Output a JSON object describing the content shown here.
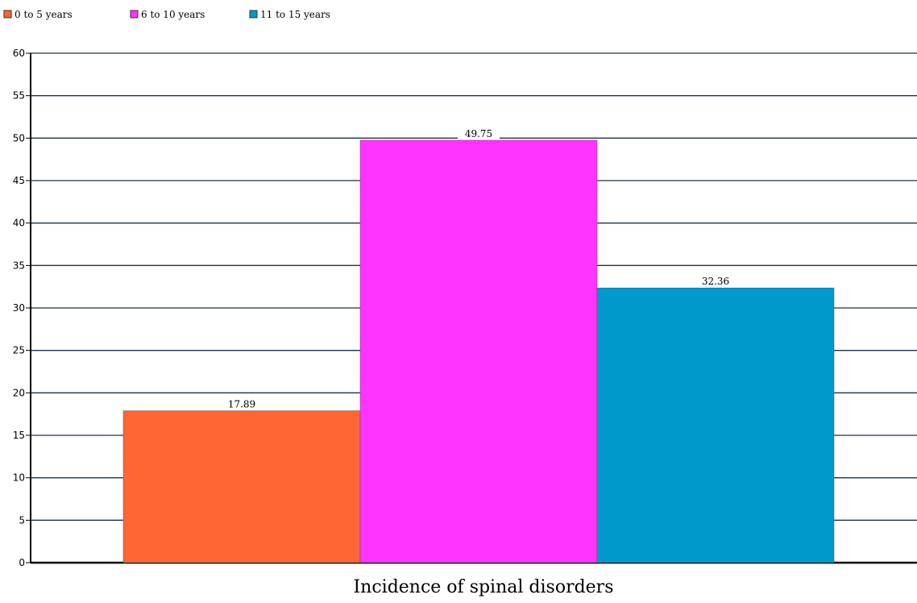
{
  "chart_data": {
    "type": "bar",
    "categories": [
      "Incidence of spinal disorders"
    ],
    "series": [
      {
        "name": "0 to 5 years",
        "values": [
          17.89
        ],
        "color": "#ff6633"
      },
      {
        "name": "6 to 10 years",
        "values": [
          49.75
        ],
        "color": "#ff33ff"
      },
      {
        "name": "11 to 15 years",
        "values": [
          32.36
        ],
        "color": "#0099cc"
      }
    ],
    "xlabel": "Incidence of spinal disorders",
    "ylabel": "",
    "ylim": [
      0,
      60
    ],
    "yticks": [
      0,
      5,
      10,
      15,
      20,
      25,
      30,
      35,
      40,
      45,
      50,
      55,
      60
    ],
    "value_labels": [
      "17.89",
      "49.75",
      "32.36"
    ],
    "grid": true,
    "legend_position": "top-left"
  }
}
